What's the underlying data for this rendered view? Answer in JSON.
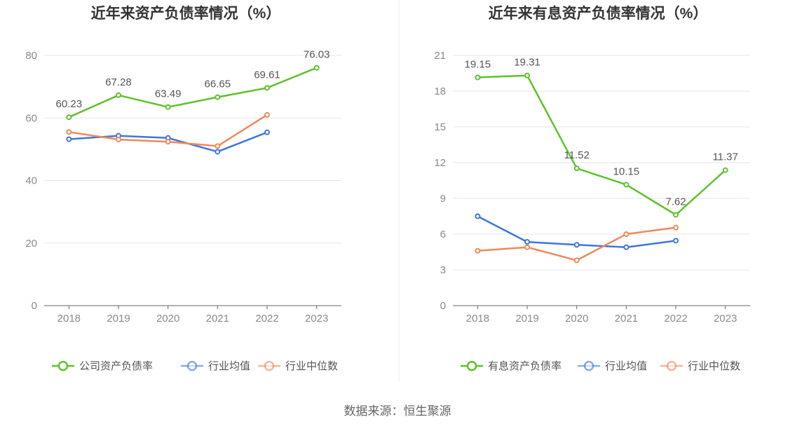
{
  "source_text": "数据来源：恒生聚源",
  "colors": {
    "main": "#5dc22a",
    "avg": "#3f76d9",
    "median": "#f0885a"
  },
  "chart_data": [
    {
      "type": "line",
      "title": "近年来资产负债率情况（%）",
      "x": [
        "2018",
        "2019",
        "2020",
        "2021",
        "2022",
        "2023"
      ],
      "ylim": [
        0,
        80
      ],
      "yticks": [
        0,
        20,
        40,
        60,
        80
      ],
      "grid": true,
      "legend_position": "bottom",
      "series": [
        {
          "name": "公司资产负债率",
          "color": "#5dc22a",
          "values": [
            60.23,
            67.28,
            63.49,
            66.65,
            69.61,
            76.03
          ],
          "labels": [
            "60.23",
            "67.28",
            "63.49",
            "66.65",
            "69.61",
            "76.03"
          ]
        },
        {
          "name": "行业均值",
          "color": "#3f76d9",
          "values": [
            53.2,
            54.3,
            53.6,
            49.2,
            55.4,
            null
          ]
        },
        {
          "name": "行业中位数",
          "color": "#f0885a",
          "values": [
            55.5,
            53.1,
            52.4,
            51.0,
            61.0,
            null
          ]
        }
      ]
    },
    {
      "type": "line",
      "title": "近年来有息资产负债率情况（%）",
      "x": [
        "2018",
        "2019",
        "2020",
        "2021",
        "2022",
        "2023"
      ],
      "ylim": [
        0,
        21
      ],
      "yticks": [
        0,
        3,
        6,
        9,
        12,
        15,
        18,
        21
      ],
      "grid": true,
      "legend_position": "bottom",
      "series": [
        {
          "name": "有息资产负债率",
          "color": "#5dc22a",
          "values": [
            19.15,
            19.31,
            11.52,
            10.15,
            7.62,
            11.37
          ],
          "labels": [
            "19.15",
            "19.31",
            "11.52",
            "10.15",
            "7.62",
            "11.37"
          ]
        },
        {
          "name": "行业均值",
          "color": "#3f76d9",
          "values": [
            7.5,
            5.35,
            5.1,
            4.9,
            5.45,
            null
          ]
        },
        {
          "name": "行业中位数",
          "color": "#f0885a",
          "values": [
            4.6,
            4.9,
            3.8,
            6.0,
            6.55,
            null
          ]
        }
      ]
    }
  ]
}
